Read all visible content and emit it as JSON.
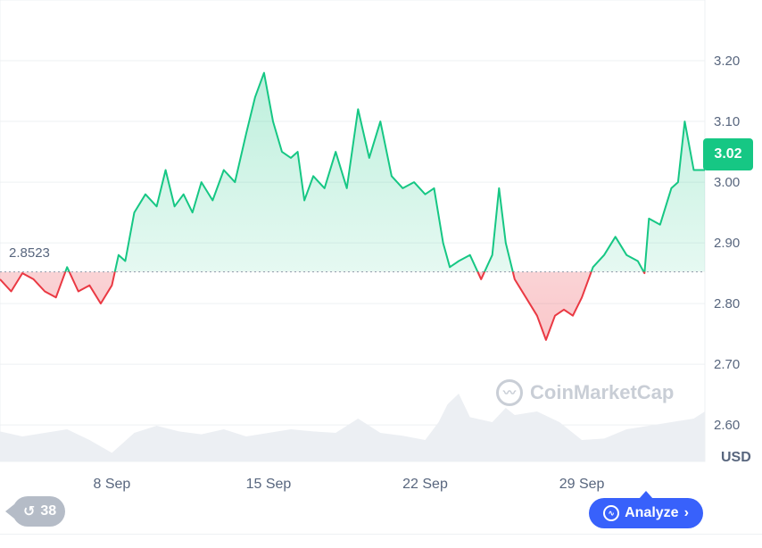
{
  "chart_data": {
    "type": "area",
    "unit": "USD",
    "current_price": "3.02",
    "reference_value": 2.8523,
    "reference_label": "2.8523",
    "ylim": [
      2.54,
      3.3
    ],
    "ticks_y": [
      "2.60",
      "2.70",
      "2.80",
      "2.90",
      "3.00",
      "3.10",
      "3.20"
    ],
    "ticks_y_values": [
      2.6,
      2.7,
      2.8,
      2.9,
      3.0,
      3.1,
      3.2
    ],
    "x_domain": [
      3.0,
      34.5
    ],
    "x_ticks": [
      {
        "label": "8 Sep",
        "day": 8
      },
      {
        "label": "15 Sep",
        "day": 15
      },
      {
        "label": "22 Sep",
        "day": 22
      },
      {
        "label": "29 Sep",
        "day": 29
      }
    ],
    "grid": true,
    "colors": {
      "above": "#16c784",
      "below": "#ea3943",
      "ref_line": "#9aa3b2"
    },
    "price_series": [
      [
        3.0,
        2.84
      ],
      [
        3.5,
        2.82
      ],
      [
        4.0,
        2.85
      ],
      [
        4.5,
        2.84
      ],
      [
        5.0,
        2.82
      ],
      [
        5.5,
        2.81
      ],
      [
        6.0,
        2.86
      ],
      [
        6.5,
        2.82
      ],
      [
        7.0,
        2.83
      ],
      [
        7.5,
        2.8
      ],
      [
        8.0,
        2.83
      ],
      [
        8.3,
        2.88
      ],
      [
        8.6,
        2.87
      ],
      [
        9.0,
        2.95
      ],
      [
        9.5,
        2.98
      ],
      [
        10.0,
        2.96
      ],
      [
        10.4,
        3.02
      ],
      [
        10.8,
        2.96
      ],
      [
        11.2,
        2.98
      ],
      [
        11.6,
        2.95
      ],
      [
        12.0,
        3.0
      ],
      [
        12.5,
        2.97
      ],
      [
        13.0,
        3.02
      ],
      [
        13.5,
        3.0
      ],
      [
        14.0,
        3.08
      ],
      [
        14.4,
        3.14
      ],
      [
        14.8,
        3.18
      ],
      [
        15.2,
        3.1
      ],
      [
        15.6,
        3.05
      ],
      [
        16.0,
        3.04
      ],
      [
        16.3,
        3.05
      ],
      [
        16.6,
        2.97
      ],
      [
        17.0,
        3.01
      ],
      [
        17.5,
        2.99
      ],
      [
        18.0,
        3.05
      ],
      [
        18.5,
        2.99
      ],
      [
        19.0,
        3.12
      ],
      [
        19.5,
        3.04
      ],
      [
        20.0,
        3.1
      ],
      [
        20.5,
        3.01
      ],
      [
        21.0,
        2.99
      ],
      [
        21.5,
        3.0
      ],
      [
        22.0,
        2.98
      ],
      [
        22.4,
        2.99
      ],
      [
        22.8,
        2.9
      ],
      [
        23.1,
        2.86
      ],
      [
        23.5,
        2.87
      ],
      [
        24.0,
        2.88
      ],
      [
        24.5,
        2.84
      ],
      [
        25.0,
        2.88
      ],
      [
        25.3,
        2.99
      ],
      [
        25.6,
        2.9
      ],
      [
        26.0,
        2.84
      ],
      [
        26.5,
        2.81
      ],
      [
        27.0,
        2.78
      ],
      [
        27.4,
        2.74
      ],
      [
        27.8,
        2.78
      ],
      [
        28.2,
        2.79
      ],
      [
        28.6,
        2.78
      ],
      [
        29.0,
        2.81
      ],
      [
        29.5,
        2.86
      ],
      [
        30.0,
        2.88
      ],
      [
        30.5,
        2.91
      ],
      [
        31.0,
        2.88
      ],
      [
        31.5,
        2.87
      ],
      [
        31.8,
        2.85
      ],
      [
        32.0,
        2.94
      ],
      [
        32.5,
        2.93
      ],
      [
        33.0,
        2.99
      ],
      [
        33.3,
        3.0
      ],
      [
        33.6,
        3.1
      ],
      [
        34.0,
        3.02
      ],
      [
        34.5,
        3.02
      ]
    ],
    "volume_series": [
      [
        3.0,
        0.42
      ],
      [
        4.0,
        0.35
      ],
      [
        5.0,
        0.4
      ],
      [
        6.0,
        0.45
      ],
      [
        7.0,
        0.3
      ],
      [
        8.0,
        0.12
      ],
      [
        9.0,
        0.4
      ],
      [
        10.0,
        0.5
      ],
      [
        11.0,
        0.42
      ],
      [
        12.0,
        0.38
      ],
      [
        13.0,
        0.45
      ],
      [
        14.0,
        0.35
      ],
      [
        15.0,
        0.4
      ],
      [
        16.0,
        0.45
      ],
      [
        17.0,
        0.42
      ],
      [
        18.0,
        0.4
      ],
      [
        19.0,
        0.6
      ],
      [
        20.0,
        0.4
      ],
      [
        21.0,
        0.36
      ],
      [
        22.0,
        0.3
      ],
      [
        22.6,
        0.55
      ],
      [
        23.0,
        0.8
      ],
      [
        23.5,
        0.95
      ],
      [
        24.0,
        0.62
      ],
      [
        25.0,
        0.55
      ],
      [
        25.6,
        0.75
      ],
      [
        26.0,
        0.65
      ],
      [
        27.0,
        0.7
      ],
      [
        28.0,
        0.55
      ],
      [
        29.0,
        0.3
      ],
      [
        30.0,
        0.32
      ],
      [
        31.0,
        0.45
      ],
      [
        32.0,
        0.5
      ],
      [
        33.0,
        0.55
      ],
      [
        34.0,
        0.6
      ],
      [
        34.5,
        0.7
      ]
    ]
  },
  "watermark": "CoinMarketCap",
  "history_button": {
    "count": "38",
    "icon": "history-icon"
  },
  "analyze_button": {
    "label": "Analyze",
    "icon": "analyze-icon"
  }
}
